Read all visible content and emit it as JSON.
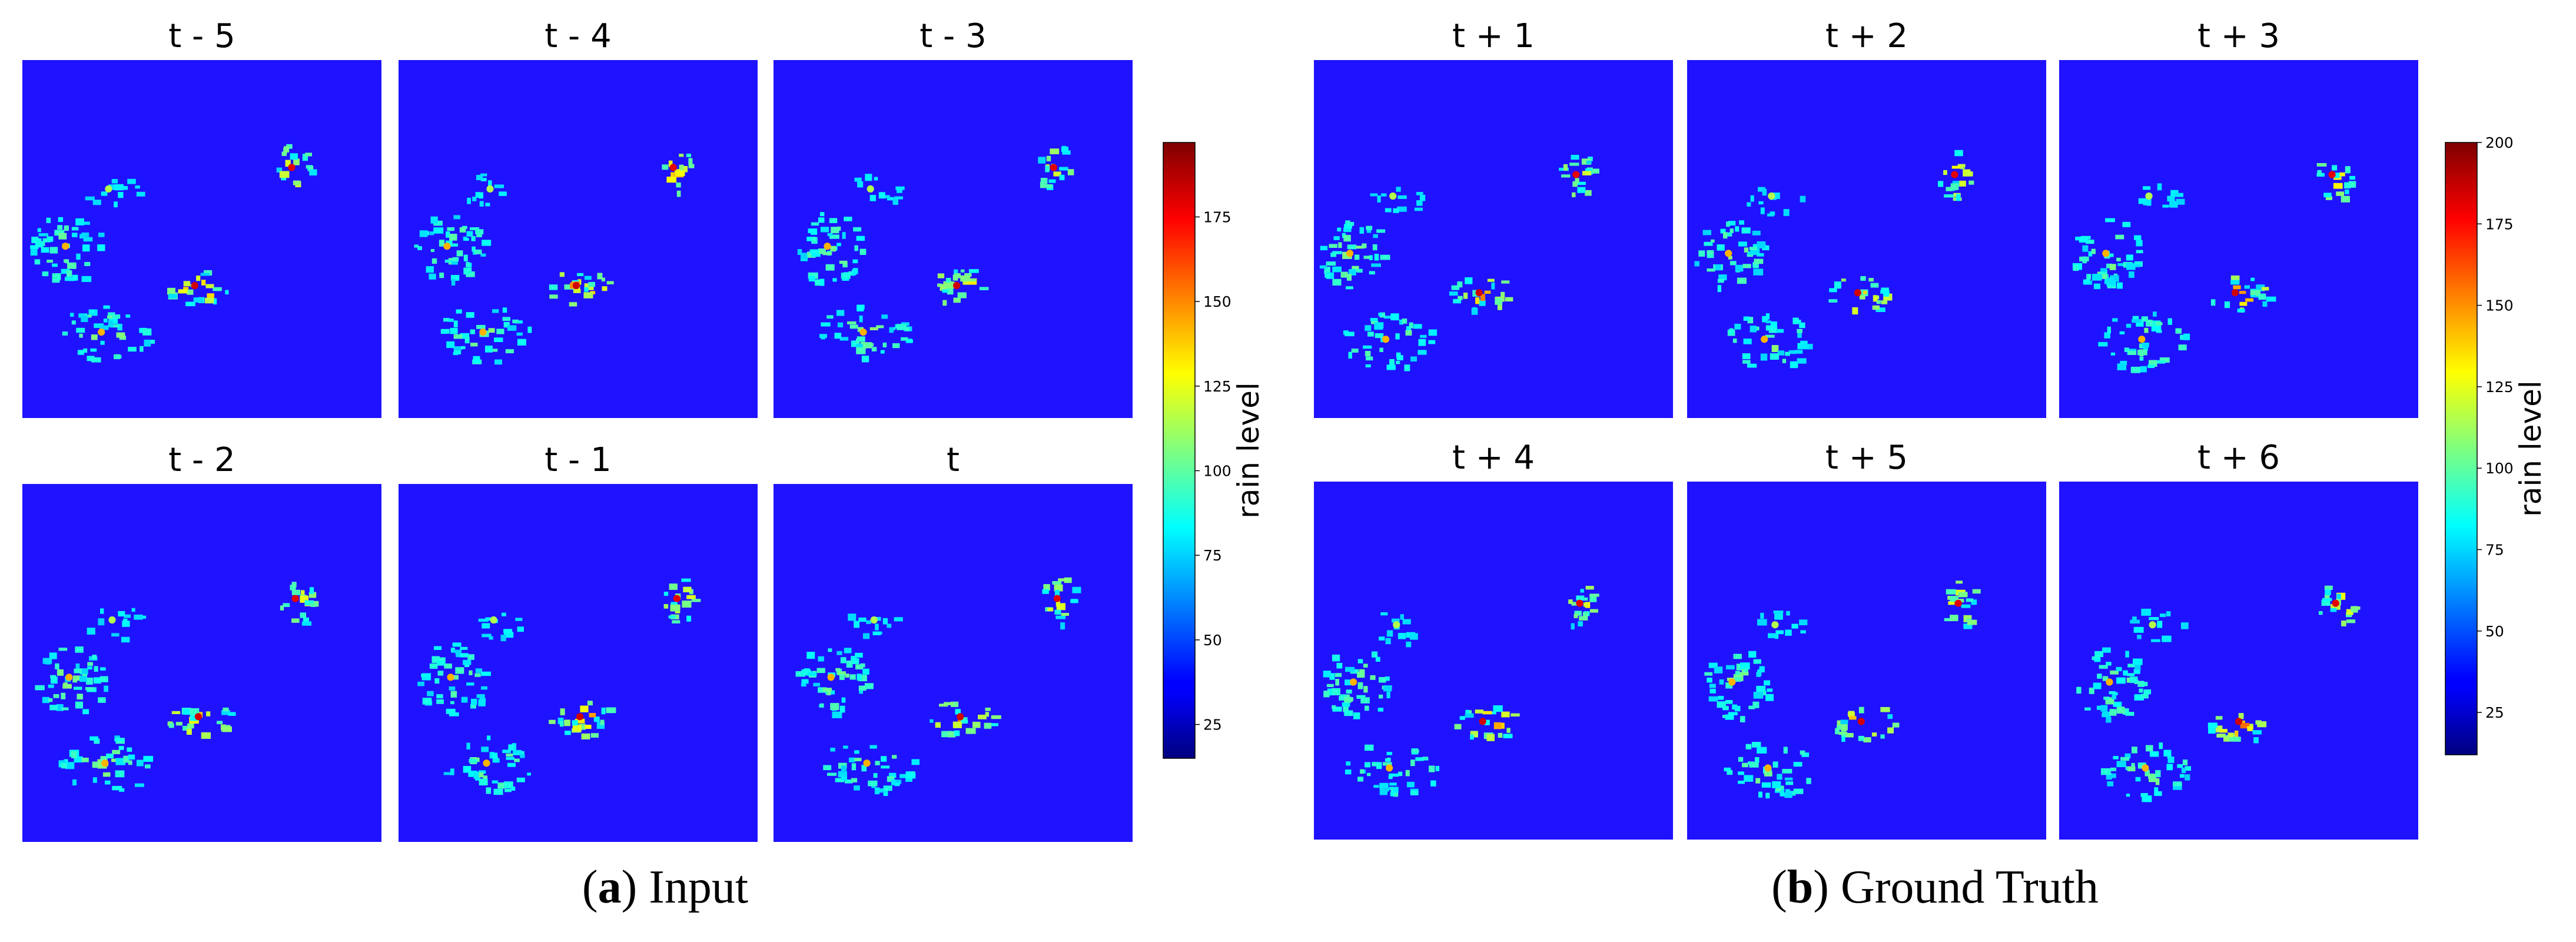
{
  "chart_data": [
    {
      "type": "heatmap",
      "panels": [
        "t - 5",
        "t - 4",
        "t - 3",
        "t - 2",
        "t - 1",
        "t"
      ],
      "colorbar": {
        "label": "rain level",
        "ticks": [
          "25",
          "50",
          "75",
          "100",
          "125",
          "150",
          "175"
        ],
        "range": [
          15,
          197
        ],
        "colormap": "jet"
      }
    },
    {
      "type": "heatmap",
      "panels": [
        "t + 1",
        "t + 2",
        "t + 3",
        "t + 4",
        "t + 5",
        "t + 6"
      ],
      "colorbar": {
        "label": "rain level",
        "ticks": [
          "25",
          "50",
          "75",
          "100",
          "125",
          "150",
          "175",
          "200"
        ],
        "range": [
          12,
          200
        ],
        "colormap": "jet"
      }
    }
  ],
  "captions": {
    "a": {
      "letter": "a",
      "text": "Input"
    },
    "b": {
      "letter": "b",
      "text": "Ground Truth"
    }
  },
  "colors": {
    "background": "#1f12ff",
    "text": "#000000"
  }
}
